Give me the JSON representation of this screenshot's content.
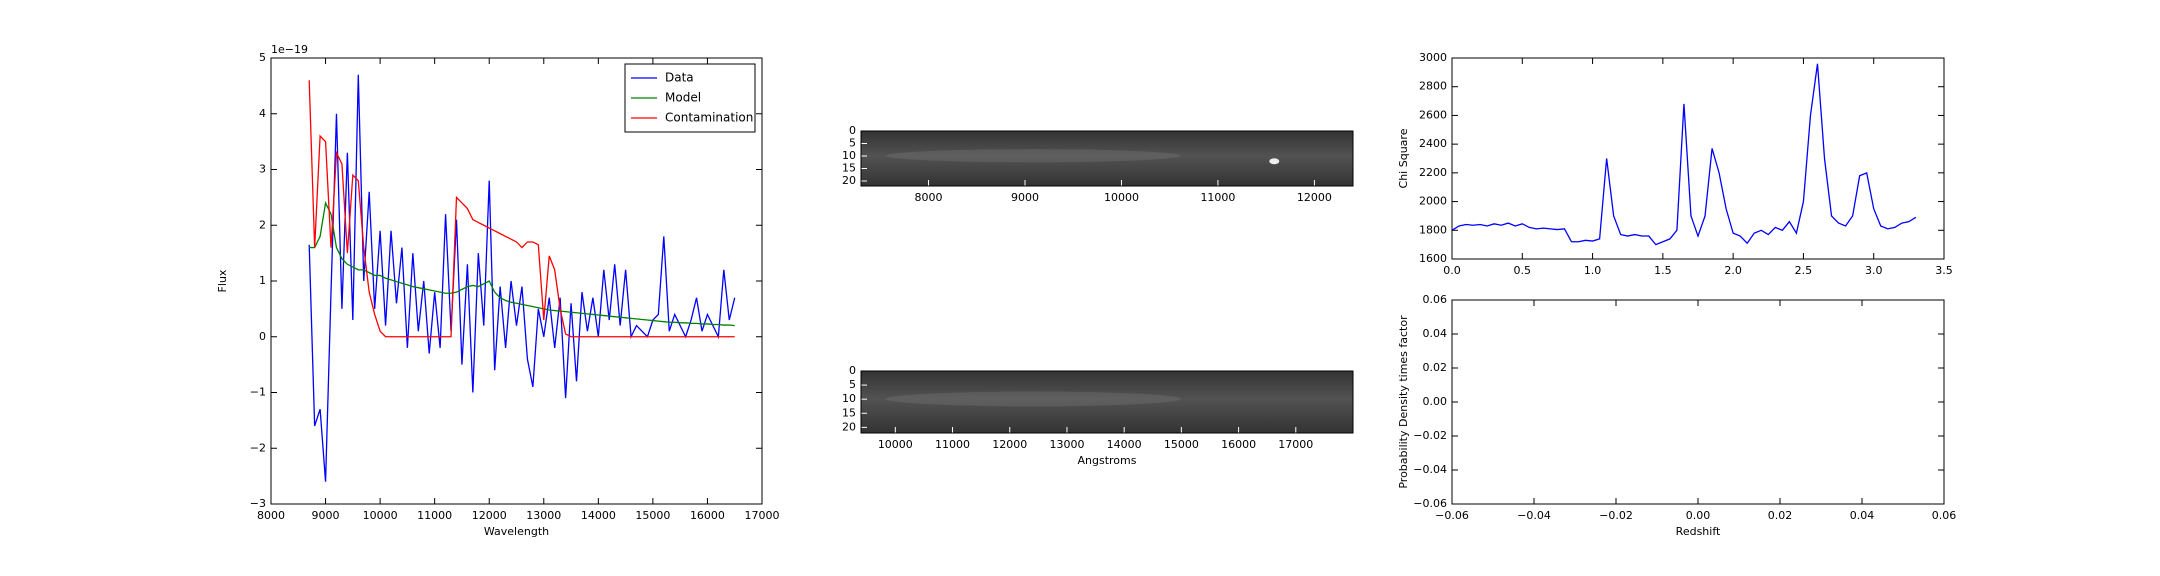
{
  "chart_data": [
    {
      "type": "line",
      "offset_text": "1e−19",
      "xlabel": "Wavelength",
      "ylabel": "Flux",
      "xlim": [
        8000,
        17000
      ],
      "ylim": [
        -3,
        5
      ],
      "xticks": [
        8000,
        9000,
        10000,
        11000,
        12000,
        13000,
        14000,
        15000,
        16000,
        17000
      ],
      "yticks": [
        {
          "value": -3,
          "label": "−3"
        },
        {
          "value": -2,
          "label": "−2"
        },
        {
          "value": -1,
          "label": "−1"
        },
        0,
        1,
        2,
        3,
        4,
        5
      ],
      "legend": "upper right",
      "x": [
        8700,
        8800,
        8900,
        9000,
        9100,
        9200,
        9300,
        9400,
        9500,
        9600,
        9700,
        9800,
        9900,
        10000,
        10100,
        10200,
        10300,
        10400,
        10500,
        10600,
        10700,
        10800,
        10900,
        11000,
        11100,
        11200,
        11300,
        11400,
        11500,
        11600,
        11700,
        11800,
        11900,
        12000,
        12100,
        12200,
        12300,
        12400,
        12500,
        12600,
        12700,
        12800,
        12900,
        13000,
        13100,
        13200,
        13300,
        13400,
        13500,
        13600,
        13700,
        13800,
        13900,
        14000,
        14100,
        14200,
        14300,
        14400,
        14500,
        14600,
        14700,
        14800,
        14900,
        15000,
        15100,
        15200,
        15300,
        15400,
        15500,
        15600,
        15700,
        15800,
        15900,
        16000,
        16100,
        16200,
        16300,
        16400,
        16500
      ],
      "series": [
        {
          "name": "Data",
          "color": "#0000ff",
          "values": [
            1.65,
            -1.6,
            -1.3,
            -2.6,
            0.8,
            4.0,
            0.5,
            3.3,
            0.3,
            4.7,
            1.0,
            2.6,
            0.5,
            1.9,
            0.2,
            1.9,
            0.6,
            1.6,
            -0.2,
            1.5,
            0.1,
            1.0,
            -0.3,
            0.8,
            -0.2,
            2.2,
            0.1,
            2.1,
            -0.5,
            1.3,
            -1.0,
            1.5,
            0.2,
            2.8,
            -0.6,
            0.9,
            -0.2,
            1.0,
            0.2,
            0.9,
            -0.4,
            -0.9,
            0.5,
            0.0,
            0.7,
            -0.2,
            0.7,
            -1.1,
            0.6,
            -0.8,
            0.8,
            0.1,
            0.7,
            0.0,
            1.2,
            0.3,
            1.3,
            0.2,
            1.2,
            0.0,
            0.2,
            0.1,
            0.0,
            0.3,
            0.4,
            1.8,
            0.1,
            0.4,
            0.2,
            0.0,
            0.3,
            0.7,
            0.1,
            0.4,
            0.2,
            0.0,
            1.2,
            0.3,
            0.7
          ]
        },
        {
          "name": "Model",
          "color": "#008000",
          "values": [
            1.6,
            1.6,
            1.8,
            2.4,
            2.2,
            1.6,
            1.4,
            1.3,
            1.25,
            1.2,
            1.2,
            1.15,
            1.1,
            1.1,
            1.05,
            1.02,
            0.99,
            0.96,
            0.93,
            0.9,
            0.88,
            0.86,
            0.84,
            0.82,
            0.8,
            0.78,
            0.78,
            0.8,
            0.85,
            0.9,
            0.92,
            0.9,
            0.95,
            1.0,
            0.8,
            0.7,
            0.65,
            0.62,
            0.6,
            0.58,
            0.56,
            0.54,
            0.52,
            0.5,
            0.48,
            0.47,
            0.46,
            0.45,
            0.44,
            0.43,
            0.42,
            0.41,
            0.4,
            0.39,
            0.38,
            0.37,
            0.36,
            0.35,
            0.34,
            0.33,
            0.32,
            0.31,
            0.3,
            0.29,
            0.28,
            0.27,
            0.26,
            0.26,
            0.25,
            0.25,
            0.24,
            0.24,
            0.23,
            0.23,
            0.22,
            0.22,
            0.21,
            0.21,
            0.2
          ]
        },
        {
          "name": "Contamination",
          "color": "#ff0000",
          "values": [
            4.6,
            1.6,
            3.6,
            3.5,
            1.6,
            3.3,
            3.1,
            1.5,
            2.9,
            2.8,
            1.6,
            0.8,
            0.4,
            0.1,
            0.0,
            0.0,
            0.0,
            0.0,
            0.0,
            0.0,
            0.0,
            0.0,
            0.0,
            0.0,
            0.0,
            0.0,
            0.0,
            2.5,
            2.4,
            2.3,
            2.1,
            2.05,
            2.0,
            1.95,
            1.9,
            1.85,
            1.8,
            1.75,
            1.7,
            1.6,
            1.7,
            1.7,
            1.65,
            0.3,
            1.45,
            1.2,
            0.5,
            0.05,
            0.0,
            0.0,
            0.0,
            0.0,
            0.0,
            0.0,
            0.0,
            0.0,
            0.0,
            0.0,
            0.0,
            0.0,
            0.0,
            0.0,
            0.0,
            0.0,
            0.0,
            0.0,
            0.0,
            0.0,
            0.0,
            0.0,
            0.0,
            0.0,
            0.0,
            0.0,
            0.0,
            0.0,
            0.0,
            0.0,
            0.0
          ]
        }
      ]
    },
    {
      "type": "image",
      "xlim": [
        7300,
        12400
      ],
      "ylim": [
        0,
        22
      ],
      "xticks": [
        8000,
        9000,
        10000,
        11000,
        12000
      ],
      "yticks": [
        0,
        5,
        10,
        15,
        20
      ]
    },
    {
      "type": "image",
      "xlabel": "Angstroms",
      "xlim": [
        9400,
        18000
      ],
      "ylim": [
        0,
        22
      ],
      "xticks": [
        10000,
        11000,
        12000,
        13000,
        14000,
        15000,
        16000,
        17000
      ],
      "yticks": [
        0,
        5,
        10,
        15,
        20
      ]
    },
    {
      "type": "line",
      "ylabel": "Chi Square",
      "xlim": [
        0,
        3.5
      ],
      "ylim": [
        1600,
        3000
      ],
      "xticks": [
        {
          "value": 0,
          "label": "0.0"
        },
        0.5,
        {
          "value": 1,
          "label": "1.0"
        },
        1.5,
        {
          "value": 2,
          "label": "2.0"
        },
        2.5,
        {
          "value": 3,
          "label": "3.0"
        },
        3.5
      ],
      "yticks": [
        1600,
        1800,
        2000,
        2200,
        2400,
        2600,
        2800,
        3000
      ],
      "x": [
        0,
        0.05,
        0.1,
        0.15,
        0.2,
        0.25,
        0.3,
        0.35,
        0.4,
        0.45,
        0.5,
        0.55,
        0.6,
        0.65,
        0.7,
        0.75,
        0.8,
        0.85,
        0.9,
        0.95,
        1,
        1.05,
        1.1,
        1.15,
        1.2,
        1.25,
        1.3,
        1.35,
        1.4,
        1.45,
        1.5,
        1.55,
        1.6,
        1.65,
        1.7,
        1.75,
        1.8,
        1.85,
        1.9,
        1.95,
        2,
        2.05,
        2.1,
        2.15,
        2.2,
        2.25,
        2.3,
        2.35,
        2.4,
        2.45,
        2.5,
        2.55,
        2.6,
        2.65,
        2.7,
        2.75,
        2.8,
        2.85,
        2.9,
        2.95,
        3,
        3.05,
        3.1,
        3.15,
        3.2,
        3.25,
        3.3
      ],
      "series": [
        {
          "color": "#0000ff",
          "values": [
            1800,
            1830,
            1840,
            1835,
            1840,
            1830,
            1845,
            1835,
            1850,
            1830,
            1845,
            1820,
            1810,
            1815,
            1810,
            1805,
            1810,
            1720,
            1720,
            1730,
            1725,
            1740,
            2300,
            1900,
            1770,
            1760,
            1770,
            1760,
            1760,
            1700,
            1720,
            1740,
            1800,
            2680,
            1900,
            1760,
            1900,
            2370,
            2200,
            1950,
            1780,
            1760,
            1710,
            1780,
            1800,
            1770,
            1820,
            1800,
            1860,
            1780,
            2000,
            2600,
            2960,
            2300,
            1900,
            1850,
            1830,
            1900,
            2180,
            2200,
            1950,
            1830,
            1810,
            1820,
            1850,
            1860,
            1890
          ]
        }
      ]
    },
    {
      "type": "line",
      "xlabel": "Redshift",
      "ylabel": "Probability Density times factor",
      "xlim": [
        -0.06,
        0.06
      ],
      "ylim": [
        -0.06,
        0.06
      ],
      "xticks": [
        {
          "value": -0.06,
          "label": "−0.06"
        },
        {
          "value": -0.04,
          "label": "−0.04"
        },
        {
          "value": -0.02,
          "label": "−0.02"
        },
        {
          "value": 0,
          "label": "0.00"
        },
        0.02,
        0.04,
        0.06
      ],
      "yticks": [
        {
          "value": -0.06,
          "label": "−0.06"
        },
        {
          "value": -0.04,
          "label": "−0.04"
        },
        {
          "value": -0.02,
          "label": "−0.02"
        },
        {
          "value": 0,
          "label": "0.00"
        },
        0.02,
        0.04,
        0.06
      ],
      "series": []
    }
  ]
}
